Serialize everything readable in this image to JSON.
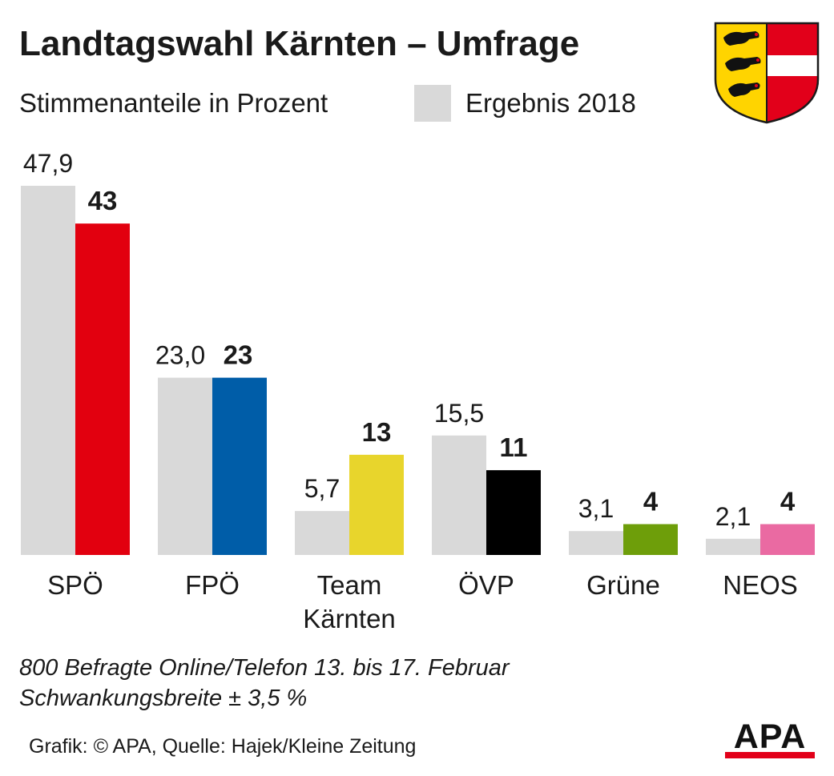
{
  "header": {
    "title": "Landtagswahl Kärnten – Umfrage",
    "subtitle": "Stimmenanteile in Prozent",
    "legend_label": "Ergebnis 2018"
  },
  "footer": {
    "note_line1": "800 Befragte Online/Telefon 13. bis 17. Februar",
    "note_line2": "Schwankungsbreite ± 3,5 %",
    "source": "Grafik: © APA, Quelle: Hajek/Kleine Zeitung",
    "logo_text": "APA"
  },
  "colors": {
    "result_2018": "#d9d9d9",
    "logo_red": "#e2001a"
  },
  "chart_data": {
    "type": "bar",
    "categories": [
      "SPÖ",
      "FPÖ",
      "Team Kärnten",
      "ÖVP",
      "Grüne",
      "NEOS"
    ],
    "category_lines": [
      [
        "SPÖ"
      ],
      [
        "FPÖ"
      ],
      [
        "Team",
        "Kärnten"
      ],
      [
        "ÖVP"
      ],
      [
        "Grüne"
      ],
      [
        "NEOS"
      ]
    ],
    "series": [
      {
        "name": "Ergebnis 2018",
        "values": [
          47.9,
          23.0,
          5.7,
          15.5,
          3.1,
          2.1
        ],
        "labels": [
          "47,9",
          "23,0",
          "5,7",
          "15,5",
          "3,1",
          "2,1"
        ],
        "color": "#d9d9d9"
      },
      {
        "values": [
          43,
          23,
          13,
          11,
          4,
          4
        ],
        "labels": [
          "43",
          "23",
          "13",
          "11",
          "4",
          "4"
        ],
        "colors": [
          "#e2000f",
          "#005da8",
          "#e8d52c",
          "#000000",
          "#6e9e0a",
          "#ea6aa2"
        ]
      }
    ],
    "ylim": [
      0,
      47.9
    ],
    "grid": false,
    "legend_position": "top"
  }
}
